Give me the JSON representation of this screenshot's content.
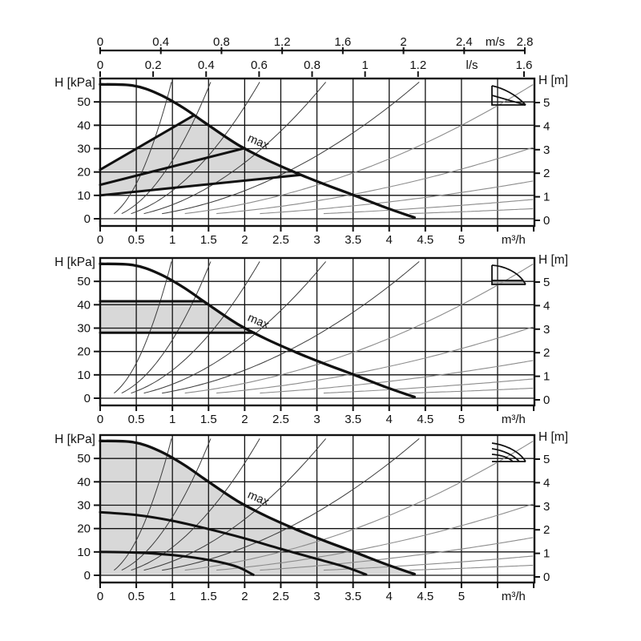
{
  "colors": {
    "axis": "#111111",
    "grid": "#111111",
    "curve": "#111111",
    "shade": "#d8d8d8",
    "system_curve_dark": "#3c3c3c",
    "system_curve_light": "#8c8c8c"
  },
  "top_axes": {
    "velocity": {
      "unit_label": "m/s",
      "tick_labels": [
        "0",
        "0.4",
        "0.8",
        "1.2",
        "1.6",
        "2",
        "2.4",
        "2.8"
      ],
      "tick_values": [
        0,
        0.4,
        0.8,
        1.2,
        1.6,
        2.0,
        2.4,
        2.8
      ]
    },
    "liters_per_second": {
      "unit_label": "l/s",
      "tick_labels": [
        "0",
        "0.2",
        "0.4",
        "0.6",
        "0.8",
        "1",
        "1.2",
        "1.6"
      ],
      "tick_values": [
        0,
        0.2,
        0.4,
        0.6,
        0.8,
        1.0,
        1.2,
        1.6
      ]
    }
  },
  "system_curves": {
    "k_values": [
      60,
      25,
      12,
      6,
      3,
      1.6,
      0.85,
      0.45,
      0.23,
      0.12
    ],
    "h_start": 2.2,
    "h_end": 58.5
  },
  "chart_data": [
    {
      "type": "line",
      "mode_icon": "proportional-pressure-icon",
      "annotation": "max",
      "y_axis_left": {
        "label": "H [kPa]",
        "tick_labels": [
          "0",
          "10",
          "20",
          "30",
          "40",
          "50"
        ],
        "range": [
          -3,
          60
        ]
      },
      "y_axis_right": {
        "label": "H [m]",
        "tick_labels": [
          "0",
          "1",
          "2",
          "3",
          "4",
          "5"
        ]
      },
      "x_axis": {
        "label": "m³/h",
        "tick_labels": [
          "0",
          "0.5",
          "1",
          "1.5",
          "2",
          "2.5",
          "3",
          "3.5",
          "4",
          "4.5",
          "5"
        ],
        "range": [
          0,
          6
        ]
      },
      "series": [
        {
          "name": "max-curve",
          "points": [
            [
              0,
              57.5
            ],
            [
              0.45,
              57
            ],
            [
              0.8,
              53.5
            ],
            [
              1.15,
              47.5
            ],
            [
              1.5,
              40
            ],
            [
              1.9,
              31.8
            ],
            [
              2.3,
              25.3
            ],
            [
              2.7,
              19.8
            ],
            [
              3.1,
              14.8
            ],
            [
              3.5,
              10.2
            ],
            [
              3.95,
              4.8
            ],
            [
              4.35,
              0.5
            ]
          ]
        },
        {
          "name": "prop-setting-high",
          "points": [
            [
              0,
              21
            ],
            [
              1.3,
              44.3
            ]
          ]
        },
        {
          "name": "prop-setting-mid",
          "points": [
            [
              0,
              14.5
            ],
            [
              2.0,
              30.2
            ]
          ]
        },
        {
          "name": "prop-setting-low",
          "points": [
            [
              0,
              10
            ],
            [
              2.78,
              18.8
            ]
          ]
        }
      ],
      "shaded_region": [
        [
          0,
          21
        ],
        [
          1.3,
          44.3
        ],
        [
          1.5,
          40
        ],
        [
          1.9,
          31.8
        ],
        [
          2.3,
          25.3
        ],
        [
          2.78,
          18.8
        ],
        [
          0,
          10
        ]
      ]
    },
    {
      "type": "line",
      "mode_icon": "constant-pressure-icon",
      "annotation": "max",
      "y_axis_left": {
        "label": "H [kPa]",
        "tick_labels": [
          "0",
          "10",
          "20",
          "30",
          "40",
          "50"
        ],
        "range": [
          -3,
          60
        ]
      },
      "y_axis_right": {
        "label": "H [m]",
        "tick_labels": [
          "0",
          "1",
          "2",
          "3",
          "4",
          "5"
        ]
      },
      "x_axis": {
        "label": "m³/h",
        "tick_labels": [
          "0",
          "0.5",
          "1",
          "1.5",
          "2",
          "2.5",
          "3",
          "3.5",
          "4",
          "4.5",
          "5"
        ],
        "range": [
          0,
          6
        ]
      },
      "series": [
        {
          "name": "max-curve",
          "points": [
            [
              0,
              57.5
            ],
            [
              0.45,
              57
            ],
            [
              0.8,
              53.5
            ],
            [
              1.15,
              47.5
            ],
            [
              1.5,
              40
            ],
            [
              1.9,
              31.8
            ],
            [
              2.3,
              25.3
            ],
            [
              2.7,
              19.8
            ],
            [
              3.1,
              14.8
            ],
            [
              3.5,
              10.2
            ],
            [
              3.95,
              4.8
            ],
            [
              4.35,
              0.5
            ]
          ]
        },
        {
          "name": "const-pressure-high",
          "points": [
            [
              0,
              41.5
            ],
            [
              1.43,
              41.5
            ]
          ]
        },
        {
          "name": "const-pressure-low",
          "points": [
            [
              0,
              28
            ],
            [
              2.13,
              28
            ]
          ]
        }
      ],
      "shaded_region": [
        [
          0,
          41.5
        ],
        [
          1.43,
          41.5
        ],
        [
          1.5,
          40
        ],
        [
          1.9,
          31.8
        ],
        [
          2.13,
          28
        ],
        [
          0,
          28
        ]
      ]
    },
    {
      "type": "line",
      "mode_icon": "constant-curve-icon",
      "annotation": "max",
      "y_axis_left": {
        "label": "H [kPa]",
        "tick_labels": [
          "0",
          "10",
          "20",
          "30",
          "40",
          "50"
        ],
        "range": [
          -3,
          60
        ]
      },
      "y_axis_right": {
        "label": "H [m]",
        "tick_labels": [
          "0",
          "1",
          "2",
          "3",
          "4",
          "5"
        ]
      },
      "x_axis": {
        "label": "m³/h",
        "tick_labels": [
          "0",
          "0.5",
          "1",
          "1.5",
          "2",
          "2.5",
          "3",
          "3.5",
          "4",
          "4.5",
          "5"
        ],
        "range": [
          0,
          6
        ]
      },
      "series": [
        {
          "name": "max-curve",
          "points": [
            [
              0,
              57.5
            ],
            [
              0.45,
              57
            ],
            [
              0.8,
              53.5
            ],
            [
              1.15,
              47.5
            ],
            [
              1.5,
              40
            ],
            [
              1.9,
              31.8
            ],
            [
              2.3,
              25.3
            ],
            [
              2.7,
              19.8
            ],
            [
              3.1,
              14.8
            ],
            [
              3.5,
              10.2
            ],
            [
              3.95,
              4.8
            ],
            [
              4.35,
              0.5
            ]
          ]
        },
        {
          "name": "speed-ii-curve",
          "points": [
            [
              0,
              27
            ],
            [
              0.5,
              25.8
            ],
            [
              1.0,
              23.3
            ],
            [
              1.5,
              19.8
            ],
            [
              2.0,
              15.8
            ],
            [
              2.5,
              11.3
            ],
            [
              3.0,
              7
            ],
            [
              3.4,
              3.5
            ],
            [
              3.68,
              0.3
            ]
          ]
        },
        {
          "name": "speed-i-curve",
          "points": [
            [
              0,
              10
            ],
            [
              0.4,
              9.8
            ],
            [
              0.8,
              9.2
            ],
            [
              1.2,
              8
            ],
            [
              1.6,
              6
            ],
            [
              1.9,
              3.6
            ],
            [
              2.12,
              0.2
            ]
          ]
        }
      ],
      "shaded_region": [
        [
          0,
          57.5
        ],
        [
          0.45,
          57
        ],
        [
          0.8,
          53.5
        ],
        [
          1.15,
          47.5
        ],
        [
          1.5,
          40
        ],
        [
          1.9,
          31.8
        ],
        [
          2.3,
          25.3
        ],
        [
          2.7,
          19.8
        ],
        [
          3.1,
          14.8
        ],
        [
          3.5,
          10.2
        ],
        [
          3.95,
          4.8
        ],
        [
          4.35,
          0.5
        ],
        [
          4.35,
          0.4
        ],
        [
          0,
          0.4
        ]
      ]
    }
  ]
}
